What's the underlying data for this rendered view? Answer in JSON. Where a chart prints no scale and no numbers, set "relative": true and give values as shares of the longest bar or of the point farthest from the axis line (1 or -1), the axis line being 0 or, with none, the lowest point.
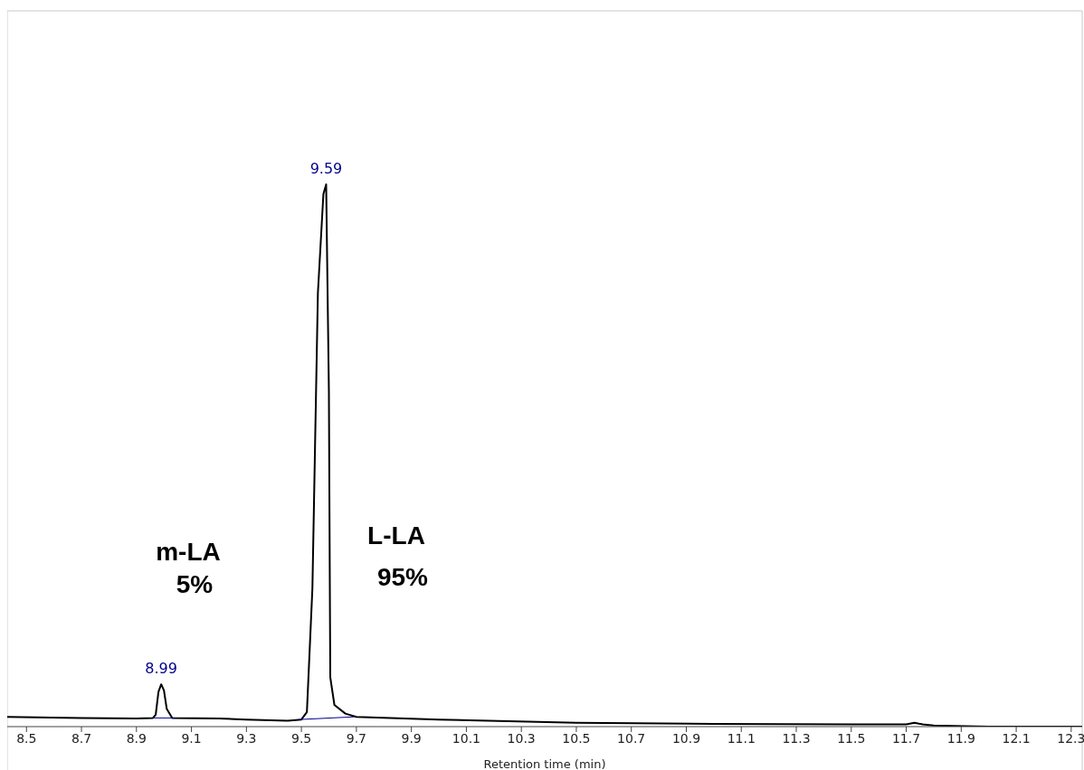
{
  "chart_data": {
    "type": "line",
    "relative": true,
    "xlabel": "Retention time (min)",
    "xlim": [
      8.43,
      12.34
    ],
    "xticks": [
      8.5,
      8.7,
      8.9,
      9.1,
      9.3,
      9.5,
      9.7,
      9.9,
      10.1,
      10.3,
      10.5,
      10.7,
      10.9,
      11.1,
      11.3,
      11.5,
      11.7,
      11.9,
      12.1,
      12.3
    ],
    "grid": false,
    "marker": "none",
    "line_style": "solid",
    "series": [
      {
        "color": "#000000",
        "x": [
          8.43,
          8.7,
          8.9,
          8.96,
          8.97,
          8.98,
          8.99,
          9.0,
          9.01,
          9.03,
          9.2,
          9.3,
          9.45,
          9.5,
          9.52,
          9.54,
          9.56,
          9.58,
          9.59,
          9.6,
          9.605,
          9.62,
          9.66,
          9.7,
          10.0,
          10.5,
          11.0,
          11.5,
          11.7,
          11.73,
          11.76,
          11.8,
          12.0,
          12.34
        ],
        "values": [
          0.018,
          0.016,
          0.015,
          0.016,
          0.022,
          0.064,
          0.078,
          0.067,
          0.033,
          0.016,
          0.015,
          0.013,
          0.011,
          0.013,
          0.027,
          0.255,
          0.8,
          0.982,
          1.0,
          0.618,
          0.091,
          0.04,
          0.024,
          0.018,
          0.013,
          0.007,
          0.005,
          0.004,
          0.004,
          0.007,
          0.004,
          0.002,
          0.0,
          0.0
        ]
      },
      {
        "color": "#00008b",
        "x": [
          8.96,
          9.04
        ],
        "values": [
          0.016,
          0.016
        ]
      },
      {
        "color": "#00008b",
        "x": [
          9.49,
          9.69
        ],
        "values": [
          0.013,
          0.018
        ]
      }
    ],
    "annotations": [
      {
        "text": "8.99",
        "x": 8.99,
        "y": 0.078
      },
      {
        "text": "9.59",
        "x": 9.59,
        "y": 1.0
      },
      "m-LA",
      "5%",
      "L-LA",
      "95%"
    ]
  }
}
